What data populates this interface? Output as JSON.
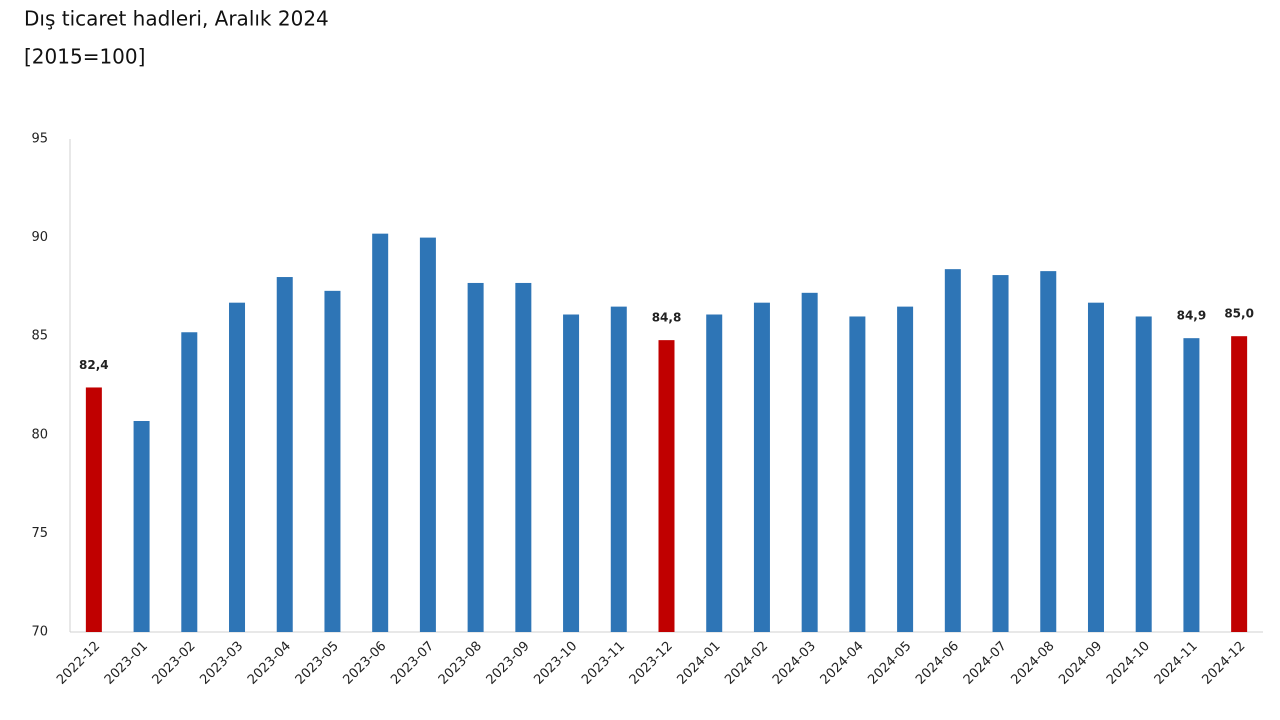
{
  "chart_data": {
    "type": "bar",
    "title": "Dış ticaret hadleri, Aralık 2024",
    "subtitle": "[2015=100]",
    "categories": [
      "2022-12",
      "2023-01",
      "2023-02",
      "2023-03",
      "2023-04",
      "2023-05",
      "2023-06",
      "2023-07",
      "2023-08",
      "2023-09",
      "2023-10",
      "2023-11",
      "2023-12",
      "2024-01",
      "2024-02",
      "2024-03",
      "2024-04",
      "2024-05",
      "2024-06",
      "2024-07",
      "2024-08",
      "2024-09",
      "2024-10",
      "2024-11",
      "2024-12"
    ],
    "values": [
      82.4,
      80.7,
      85.2,
      86.7,
      88.0,
      87.3,
      90.2,
      90.0,
      87.7,
      87.7,
      86.1,
      86.5,
      84.8,
      86.1,
      86.7,
      87.2,
      86.0,
      86.5,
      88.4,
      88.1,
      88.3,
      86.7,
      86.0,
      84.9,
      85.0
    ],
    "value_labels": [
      "82,4",
      null,
      null,
      null,
      null,
      null,
      null,
      null,
      null,
      null,
      null,
      null,
      "84,8",
      null,
      null,
      null,
      null,
      null,
      null,
      null,
      null,
      null,
      null,
      "84,9",
      "85,0"
    ],
    "colors": [
      "#c00000",
      "#2e75b6",
      "#2e75b6",
      "#2e75b6",
      "#2e75b6",
      "#2e75b6",
      "#2e75b6",
      "#2e75b6",
      "#2e75b6",
      "#2e75b6",
      "#2e75b6",
      "#2e75b6",
      "#c00000",
      "#2e75b6",
      "#2e75b6",
      "#2e75b6",
      "#2e75b6",
      "#2e75b6",
      "#2e75b6",
      "#2e75b6",
      "#2e75b6",
      "#2e75b6",
      "#2e75b6",
      "#2e75b6",
      "#c00000"
    ],
    "ylim": [
      70,
      95
    ],
    "yticks": [
      70,
      75,
      80,
      85,
      90,
      95
    ],
    "grid": false
  }
}
